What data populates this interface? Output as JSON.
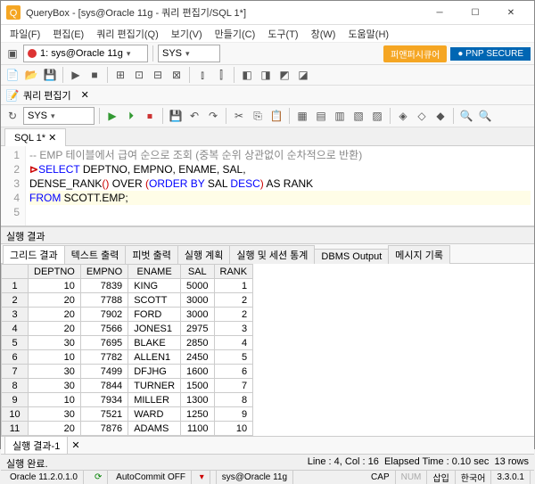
{
  "window": {
    "title": "QueryBox - [sys@Oracle 11g - 쿼리 편집기/SQL 1*]"
  },
  "menu": [
    "파일(F)",
    "편집(E)",
    "쿼리 편집기(Q)",
    "보기(V)",
    "만들기(C)",
    "도구(T)",
    "창(W)",
    "도움말(H)"
  ],
  "toolbar1": {
    "session": "1: sys@Oracle 11g",
    "schema": "SYS"
  },
  "brand": {
    "left": "퍼앤퍼시큐어",
    "right": "● PNP SECURE"
  },
  "editor_tab_row": {
    "label": "쿼리 편집기"
  },
  "tool2_schema": "SYS",
  "sql_tab": "SQL 1*",
  "code": {
    "l1": "-- EMP 테이블에서 급여 순으로 조회 (중복 순위 상관없이 순차적으로 반환)",
    "l2a": "SELECT",
    "l2b": " DEPTNO, EMPNO, ENAME, SAL,",
    "l3a": "DENSE_RANK",
    "l3p1": "()",
    "l3b": " OVER ",
    "l3p2": "(",
    "l3c": "ORDER BY",
    "l3d": " SAL ",
    "l3e": "DESC",
    "l3p3": ")",
    "l3f": " AS RANK",
    "l4a": "FROM",
    "l4b": " SCOTT.EMP;",
    "l5": ""
  },
  "results_title": "실행 결과",
  "result_tabs": [
    "그리드 결과",
    "텍스트 출력",
    "피벗 출력",
    "실행 계획",
    "실행 및 세션 통계",
    "DBMS Output",
    "메시지 기록"
  ],
  "grid": {
    "columns": [
      "DEPTNO",
      "EMPNO",
      "ENAME",
      "SAL",
      "RANK"
    ],
    "rows": [
      [
        10,
        7839,
        "KING",
        5000,
        1
      ],
      [
        20,
        7788,
        "SCOTT",
        3000,
        2
      ],
      [
        20,
        7902,
        "FORD",
        3000,
        2
      ],
      [
        20,
        7566,
        "JONES1",
        2975,
        3
      ],
      [
        30,
        7695,
        "BLAKE",
        2850,
        4
      ],
      [
        10,
        7782,
        "ALLEN1",
        2450,
        5
      ],
      [
        30,
        7499,
        "DFJHG",
        1600,
        6
      ],
      [
        30,
        7844,
        "TURNER",
        1500,
        7
      ],
      [
        10,
        7934,
        "MILLER",
        1300,
        8
      ],
      [
        30,
        7521,
        "WARD",
        1250,
        9
      ],
      [
        20,
        7876,
        "ADAMS",
        1100,
        10
      ]
    ]
  },
  "bottom_tab": "실행 결과-1",
  "status_done": "실행 완료.",
  "status": {
    "version": "Oracle 11.2.0.1.0",
    "autocommit": "AutoCommit OFF",
    "session": "sys@Oracle 11g",
    "position": "Line : 4, Col : 16",
    "elapsed": "Elapsed Time : 0.10 sec",
    "rows": "13 rows",
    "cap": "CAP",
    "num": "NUM",
    "ins": "삽입",
    "lang": "한국어",
    "build": "3.3.0.1"
  }
}
